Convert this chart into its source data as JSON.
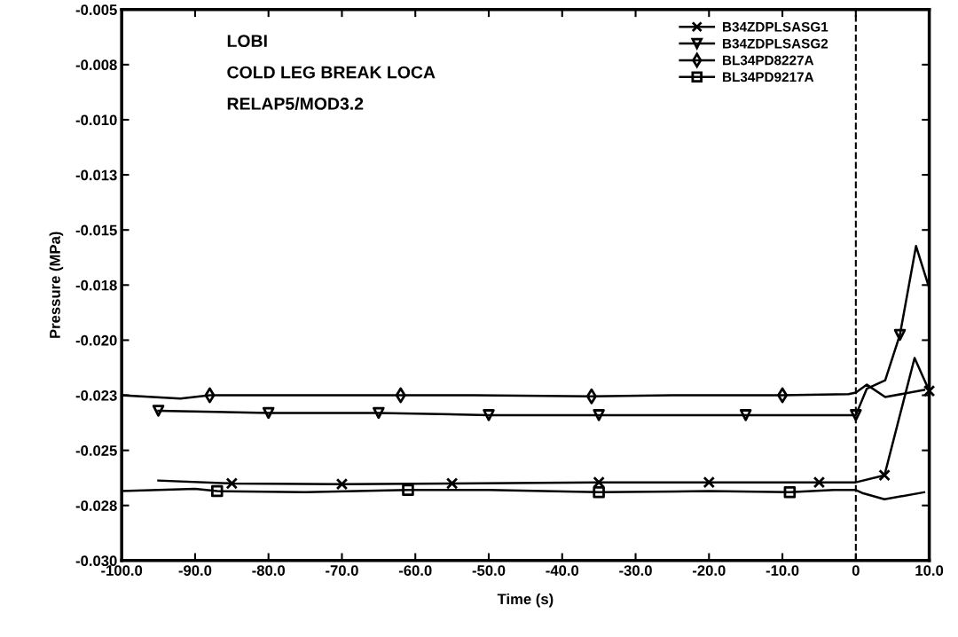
{
  "chart_data": {
    "type": "line",
    "xlabel": "Time (s)",
    "ylabel": "Pressure (MPa)",
    "annotations": [
      "LOBI",
      "COLD LEG BREAK LOCA",
      "RELAP5/MOD3.2"
    ],
    "xlim": [
      -100,
      10
    ],
    "ylim": [
      -0.03,
      -0.005
    ],
    "xticks": [
      {
        "value": -100,
        "label": "-100.0"
      },
      {
        "value": -90,
        "label": "-90.0"
      },
      {
        "value": -80,
        "label": "-80.0"
      },
      {
        "value": -70,
        "label": "-70.0"
      },
      {
        "value": -60,
        "label": "-60.0"
      },
      {
        "value": -50,
        "label": "-50.0"
      },
      {
        "value": -40,
        "label": "-40.0"
      },
      {
        "value": -30,
        "label": "-30.0"
      },
      {
        "value": -20,
        "label": "-20.0"
      },
      {
        "value": -10,
        "label": "-10.0"
      },
      {
        "value": 0,
        "label": "0"
      },
      {
        "value": 10,
        "label": "10.0"
      }
    ],
    "yticks": [
      {
        "value": -0.03,
        "label": "-0.030"
      },
      {
        "value": -0.0275,
        "label": "-0.028"
      },
      {
        "value": -0.025,
        "label": "-0.025"
      },
      {
        "value": -0.0225,
        "label": "-0.023"
      },
      {
        "value": -0.02,
        "label": "-0.020"
      },
      {
        "value": -0.0175,
        "label": "-0.018"
      },
      {
        "value": -0.015,
        "label": "-0.015"
      },
      {
        "value": -0.0125,
        "label": "-0.013"
      },
      {
        "value": -0.01,
        "label": "-0.010"
      },
      {
        "value": -0.0075,
        "label": "-0.008"
      },
      {
        "value": -0.005,
        "label": "-0.005"
      }
    ],
    "grid": false,
    "legend": "top right",
    "line_style": "solid",
    "ref_lines": [
      {
        "axis": "x",
        "value": 0,
        "line_style": "dashed",
        "color": "#000000"
      }
    ],
    "series": [
      {
        "name": "B34ZDPLSASG1",
        "color": "#000000",
        "x": [
          -95,
          -85,
          -70,
          -55,
          -35,
          -20,
          -5,
          0,
          3.9,
          8.0,
          10
        ],
        "values": [
          -0.02637,
          -0.0265,
          -0.02653,
          -0.0265,
          -0.02645,
          -0.02645,
          -0.02645,
          -0.02645,
          -0.02613,
          -0.02081,
          -0.0223
        ]
      },
      {
        "name": "B34ZDPLSASG2",
        "color": "#000000",
        "x": [
          -95,
          -80,
          -65,
          -50,
          -35,
          -15,
          0,
          1.5,
          4,
          6,
          8.2,
          9.9
        ],
        "values": [
          -0.0232,
          -0.0233,
          -0.0233,
          -0.0234,
          -0.0234,
          -0.0234,
          -0.0234,
          -0.0222,
          -0.02182,
          -0.01976,
          -0.01573,
          -0.01754
        ]
      },
      {
        "name": "BL34PD8227A",
        "color": "#000000",
        "x": [
          -100,
          -92,
          -88,
          -62,
          -52,
          -36,
          -25,
          -10,
          -1,
          0,
          1.5,
          4,
          9.3
        ],
        "values": [
          -0.0225,
          -0.02265,
          -0.0225,
          -0.0225,
          -0.0225,
          -0.02255,
          -0.0225,
          -0.0225,
          -0.02245,
          -0.02238,
          -0.02202,
          -0.02258,
          -0.02226
        ]
      },
      {
        "name": "BL34PD9217A",
        "color": "#000000",
        "x": [
          -100,
          -90,
          -87,
          -75,
          -61,
          -50,
          -35,
          -20,
          -9,
          -3,
          0,
          1,
          3.9,
          9.3
        ],
        "values": [
          -0.02685,
          -0.02675,
          -0.02685,
          -0.0269,
          -0.0268,
          -0.0268,
          -0.0269,
          -0.02685,
          -0.0269,
          -0.0268,
          -0.0268,
          -0.02695,
          -0.02722,
          -0.0269
        ]
      },
      {
        "type": "scatter",
        "marker": "cross",
        "color": "#000000",
        "x": [
          -85,
          -70,
          -55,
          -35,
          -20,
          -5,
          3.9,
          10
        ],
        "values": [
          -0.0265,
          -0.02653,
          -0.0265,
          -0.02645,
          -0.02645,
          -0.02645,
          -0.02613,
          -0.0223
        ]
      },
      {
        "type": "scatter",
        "marker": "triangle",
        "color": "#000000",
        "x": [
          -95,
          -80,
          -65,
          -50,
          -35,
          -15,
          0,
          6
        ],
        "values": [
          -0.0232,
          -0.0233,
          -0.0233,
          -0.0234,
          -0.0234,
          -0.0234,
          -0.0234,
          -0.01976
        ]
      },
      {
        "type": "scatter",
        "marker": "diamond",
        "color": "#000000",
        "x": [
          -88,
          -62,
          -36,
          -10
        ],
        "values": [
          -0.0225,
          -0.0225,
          -0.02255,
          -0.0225
        ]
      },
      {
        "type": "scatter",
        "marker": "square",
        "color": "#000000",
        "x": [
          -87,
          -61,
          -35,
          -9
        ],
        "values": [
          -0.02685,
          -0.0268,
          -0.0269,
          -0.0269
        ]
      }
    ]
  }
}
